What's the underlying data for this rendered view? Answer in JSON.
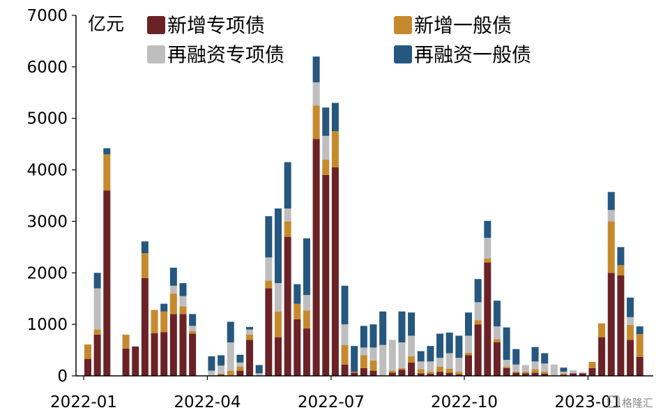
{
  "chart_data": {
    "type": "bar",
    "stacked": true,
    "unit_label": "亿元",
    "ylim": [
      0,
      7000
    ],
    "yticks": [
      0,
      1000,
      2000,
      3000,
      4000,
      5000,
      6000,
      7000
    ],
    "xtick_labels": [
      {
        "label": "2022-01",
        "index": 0
      },
      {
        "label": "2022-04",
        "index": 13
      },
      {
        "label": "2022-07",
        "index": 26
      },
      {
        "label": "2022-10",
        "index": 40
      },
      {
        "label": "2023-01",
        "index": 53
      }
    ],
    "legend": {
      "position": "top",
      "columns": 2
    },
    "grid": false,
    "series": [
      {
        "name": "新增专项债",
        "color": "#6b2226",
        "values": [
          330,
          800,
          3600,
          0,
          530,
          570,
          1900,
          830,
          850,
          1200,
          1200,
          820,
          0,
          0,
          20,
          0,
          100,
          700,
          0,
          1700,
          750,
          2700,
          1100,
          920,
          4600,
          3900,
          4050,
          220,
          60,
          150,
          100,
          0,
          60,
          120,
          260,
          50,
          40,
          80,
          60,
          30,
          400,
          1000,
          2200,
          650,
          150,
          60,
          50,
          60,
          40,
          0,
          20,
          50,
          50,
          150,
          750,
          2000,
          1950,
          700,
          370
        ]
      },
      {
        "name": "新增一般债",
        "color": "#c68a2e",
        "values": [
          280,
          100,
          700,
          0,
          270,
          0,
          480,
          450,
          400,
          400,
          150,
          50,
          0,
          0,
          20,
          100,
          80,
          100,
          0,
          150,
          500,
          300,
          300,
          350,
          650,
          300,
          700,
          380,
          20,
          250,
          200,
          0,
          40,
          30,
          120,
          80,
          40,
          100,
          80,
          50,
          50,
          80,
          80,
          60,
          30,
          20,
          30,
          70,
          40,
          0,
          30,
          0,
          0,
          120,
          270,
          1000,
          200,
          290,
          440
        ]
      },
      {
        "name": "再融资专项债",
        "color": "#bebebe",
        "values": [
          0,
          800,
          0,
          0,
          0,
          0,
          0,
          0,
          0,
          150,
          200,
          100,
          0,
          100,
          160,
          550,
          80,
          100,
          50,
          450,
          550,
          250,
          0,
          300,
          450,
          460,
          0,
          400,
          0,
          150,
          250,
          600,
          600,
          500,
          400,
          150,
          200,
          170,
          300,
          270,
          330,
          350,
          400,
          250,
          130,
          140,
          130,
          150,
          160,
          220,
          30,
          60,
          20,
          0,
          0,
          220,
          0,
          150,
          0
        ]
      },
      {
        "name": "再融资一般债",
        "color": "#25577f",
        "values": [
          0,
          300,
          120,
          0,
          0,
          0,
          230,
          0,
          150,
          350,
          250,
          230,
          0,
          280,
          200,
          400,
          150,
          50,
          160,
          800,
          1450,
          900,
          380,
          1100,
          500,
          550,
          550,
          750,
          500,
          420,
          450,
          650,
          0,
          600,
          450,
          200,
          300,
          470,
          400,
          430,
          450,
          450,
          330,
          500,
          630,
          300,
          0,
          280,
          200,
          0,
          80,
          0,
          0,
          0,
          0,
          350,
          350,
          380,
          150
        ]
      }
    ]
  },
  "watermark": "格隆汇"
}
